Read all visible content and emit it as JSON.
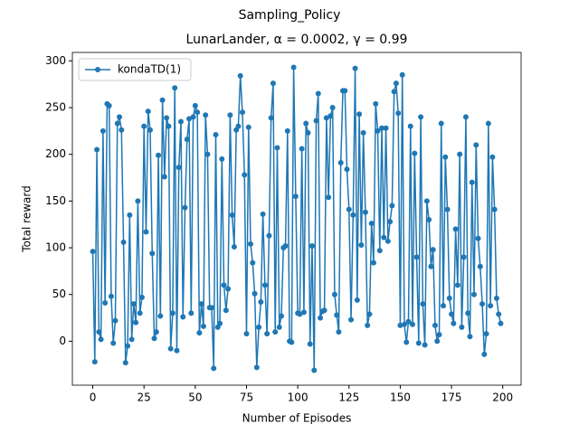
{
  "chart_data": {
    "type": "line",
    "suptitle": "Sampling_Policy",
    "title": "LunarLander, α = 0.0002, γ = 0.99",
    "x_label": "Number of Episodes",
    "y_label": "Total reward",
    "x": [
      0,
      1,
      2,
      3,
      4,
      5,
      6,
      7,
      8,
      9,
      10,
      11,
      12,
      13,
      14,
      15,
      16,
      17,
      18,
      19,
      20,
      21,
      22,
      23,
      24,
      25,
      26,
      27,
      28,
      29,
      30,
      31,
      32,
      33,
      34,
      35,
      36,
      37,
      38,
      39,
      40,
      41,
      42,
      43,
      44,
      45,
      46,
      47,
      48,
      49,
      50,
      51,
      52,
      53,
      54,
      55,
      56,
      57,
      58,
      59,
      60,
      61,
      62,
      63,
      64,
      65,
      66,
      67,
      68,
      69,
      70,
      71,
      72,
      73,
      74,
      75,
      76,
      77,
      78,
      79,
      80,
      81,
      82,
      83,
      84,
      85,
      86,
      87,
      88,
      89,
      90,
      91,
      92,
      93,
      94,
      95,
      96,
      97,
      98,
      99,
      100,
      101,
      102,
      103,
      104,
      105,
      106,
      107,
      108,
      109,
      110,
      111,
      112,
      113,
      114,
      115,
      116,
      117,
      118,
      119,
      120,
      121,
      122,
      123,
      124,
      125,
      126,
      127,
      128,
      129,
      130,
      131,
      132,
      133,
      134,
      135,
      136,
      137,
      138,
      139,
      140,
      141,
      142,
      143,
      144,
      145,
      146,
      147,
      148,
      149,
      150,
      151,
      152,
      153,
      154,
      155,
      156,
      157,
      158,
      159,
      160,
      161,
      162,
      163,
      164,
      165,
      166,
      167,
      168,
      169,
      170,
      171,
      172,
      173,
      174,
      175,
      176,
      177,
      178,
      179,
      180,
      181,
      182,
      183,
      184,
      185,
      186,
      187,
      188,
      189,
      190,
      191,
      192,
      193,
      194,
      195,
      196,
      197,
      198,
      199
    ],
    "series": [
      {
        "name": "kondaTD(1)",
        "color": "#1f77b4",
        "values": [
          96,
          -22,
          205,
          10,
          2,
          225,
          41,
          254,
          252,
          48,
          -2,
          22,
          233,
          240,
          226,
          106,
          -23,
          -5,
          135,
          2,
          40,
          20,
          150,
          30,
          47,
          230,
          117,
          246,
          226,
          94,
          3,
          10,
          199,
          27,
          258,
          176,
          239,
          230,
          -8,
          30,
          271,
          -10,
          186,
          235,
          26,
          143,
          216,
          238,
          30,
          240,
          252,
          245,
          9,
          40,
          16,
          242,
          200,
          36,
          36,
          -29,
          221,
          15,
          19,
          195,
          60,
          33,
          56,
          242,
          135,
          101,
          226,
          230,
          284,
          245,
          178,
          8,
          229,
          104,
          84,
          51,
          -28,
          15,
          42,
          136,
          60,
          8,
          113,
          239,
          276,
          10,
          207,
          15,
          27,
          100,
          102,
          225,
          0,
          -1,
          293,
          155,
          30,
          29,
          206,
          31,
          233,
          223,
          -3,
          102,
          -31,
          236,
          265,
          25,
          32,
          33,
          239,
          154,
          241,
          250,
          50,
          28,
          10,
          191,
          268,
          268,
          184,
          141,
          23,
          135,
          292,
          44,
          243,
          103,
          223,
          138,
          17,
          29,
          126,
          84,
          254,
          225,
          97,
          228,
          111,
          228,
          107,
          128,
          145,
          267,
          276,
          244,
          17,
          285,
          18,
          -1,
          21,
          230,
          18,
          201,
          90,
          -2,
          240,
          40,
          -4,
          150,
          130,
          80,
          98,
          17,
          0,
          7,
          233,
          38,
          197,
          141,
          46,
          29,
          19,
          120,
          60,
          200,
          15,
          90,
          240,
          30,
          5,
          170,
          50,
          210,
          110,
          80,
          40,
          -14,
          8,
          233,
          38,
          197,
          141,
          46,
          29,
          19
        ]
      }
    ],
    "xlim": [
      -9.95,
      208.95
    ],
    "ylim": [
      -47,
      309
    ],
    "xticks": [
      0,
      25,
      50,
      75,
      100,
      125,
      150,
      175,
      200
    ],
    "yticks": [
      0,
      50,
      100,
      150,
      200,
      250,
      300
    ],
    "legend": "upper left"
  }
}
